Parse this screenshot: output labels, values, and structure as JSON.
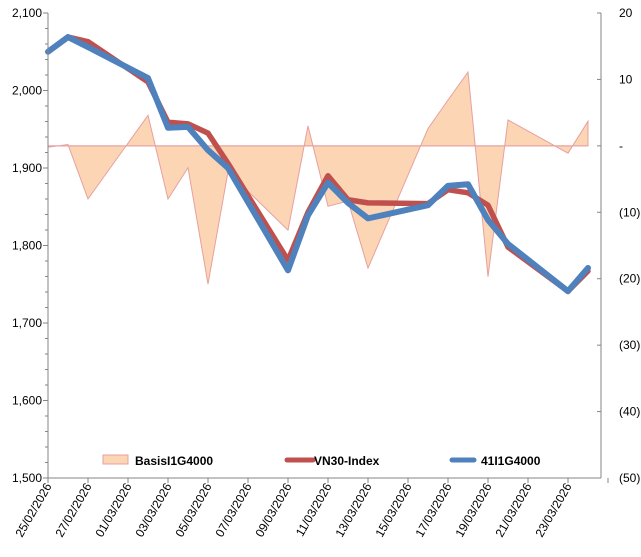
{
  "chart_data": {
    "type": "line",
    "title": "",
    "xlabel": "",
    "ylabel": "",
    "y2label": "",
    "ylim": [
      1500,
      2100
    ],
    "y2lim": [
      -50,
      20
    ],
    "legend_position": "bottom-inside",
    "grid": false,
    "left_ticks": [
      "1,500",
      "1,600",
      "1,700",
      "1,800",
      "1,900",
      "2,000",
      "2,100"
    ],
    "left_tick_values": [
      1500,
      1600,
      1700,
      1800,
      1900,
      2000,
      2100
    ],
    "right_ticks": [
      "(50)",
      "(40)",
      "(30)",
      "(20)",
      "(10)",
      "-",
      "10",
      "20"
    ],
    "right_tick_values": [
      -50,
      -40,
      -30,
      -20,
      -10,
      0,
      10,
      20
    ],
    "x_tick_labels": [
      "25/02/2026",
      "27/02/2026",
      "01/03/2026",
      "03/03/2026",
      "05/03/2026",
      "07/03/2026",
      "09/03/2026",
      "11/03/2026",
      "13/03/2026",
      "15/03/2026",
      "17/03/2026",
      "19/03/2026",
      "21/03/2026",
      "23/03/2026"
    ],
    "x_range_days": [
      0,
      28
    ],
    "x_dates": [
      "25/02/2026",
      "26/02/2026",
      "27/02/2026",
      "02/03/2026",
      "03/03/2026",
      "04/03/2026",
      "05/03/2026",
      "06/03/2026",
      "09/03/2026",
      "10/03/2026",
      "11/03/2026",
      "12/03/2026",
      "13/03/2026",
      "16/03/2026",
      "17/03/2026",
      "18/03/2026",
      "19/03/2026",
      "20/03/2026",
      "23/03/2026",
      "24/03/2026"
    ],
    "x_day_offsets": [
      0,
      1,
      2,
      5,
      6,
      7,
      8,
      9,
      12,
      13,
      14,
      15,
      16,
      19,
      20,
      21,
      22,
      23,
      26,
      27
    ],
    "series": [
      {
        "name": "BasisI1G4000",
        "type": "area",
        "axis": "right",
        "fill": "#FCD5B5",
        "stroke": "#E6A0A0",
        "values": [
          -0.2,
          0.2,
          -8.0,
          4.6,
          -8.0,
          -3.3,
          -20.8,
          -3.9,
          -12.7,
          3.0,
          -9.1,
          -8.3,
          -18.4,
          2.6,
          6.9,
          11.1,
          -19.7,
          3.9,
          -1.1,
          3.7
        ]
      },
      {
        "name": "VN30-Index",
        "type": "line",
        "axis": "left",
        "color": "#C0504D",
        "values": [
          2050,
          2069,
          2063,
          2011,
          1959,
          1957,
          1945,
          1906,
          1781,
          1843,
          1890,
          1859,
          1855,
          1854,
          1872,
          1868,
          1852,
          1798,
          1741,
          1767
        ]
      },
      {
        "name": "41I1G4000",
        "type": "line",
        "axis": "left",
        "color": "#4F81BD",
        "values": [
          2050,
          2069,
          2056,
          2016,
          1952,
          1953,
          1923,
          1900,
          1768,
          1839,
          1881,
          1855,
          1835,
          1852,
          1877,
          1879,
          1833,
          1802,
          1741,
          1771
        ]
      }
    ]
  }
}
